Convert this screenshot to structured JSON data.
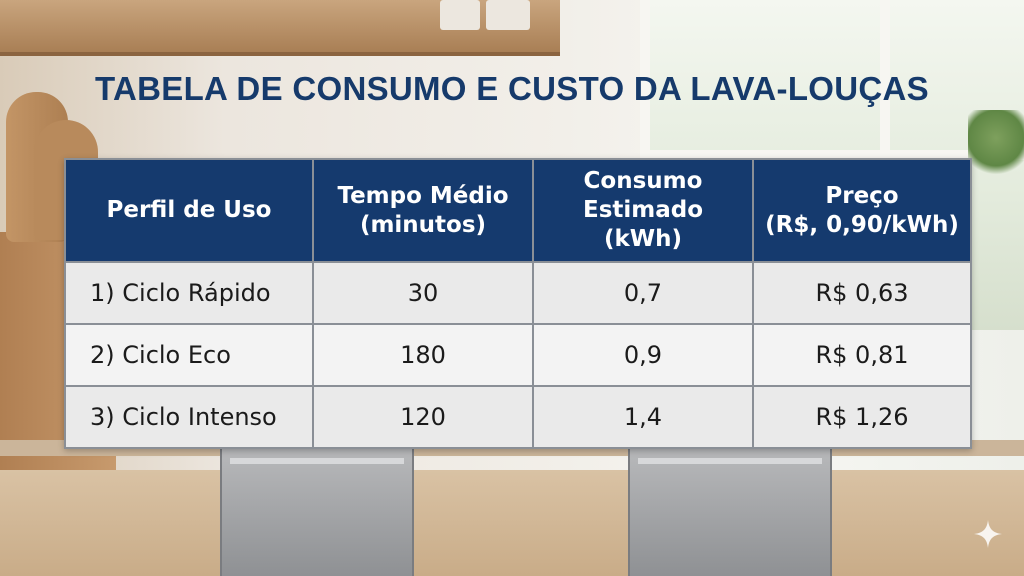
{
  "title": "TABELA DE CONSUMO E CUSTO DA LAVA-LOUÇAS",
  "table": {
    "headers": [
      "Perfil de Uso",
      "Tempo Médio\n(minutos)",
      "Consumo\nEstimado\n(kWh)",
      "Preço\n(R$, 0,90/kWh)"
    ],
    "rows": [
      [
        "1) Ciclo Rápido",
        "30",
        "0,7",
        "R$ 0,63"
      ],
      [
        "2) Ciclo Eco",
        "180",
        "0,9",
        "R$ 0,81"
      ],
      [
        "3) Ciclo Intenso",
        "120",
        "1,4",
        "R$ 1,26"
      ]
    ]
  },
  "icons": {
    "corner": "sparkle-icon"
  },
  "colors": {
    "title": "#163a6b",
    "header_bg": "#153a6e",
    "header_text": "#ffffff",
    "cell_bg": "#eaeaea",
    "cell_text": "#1b1b1b"
  }
}
